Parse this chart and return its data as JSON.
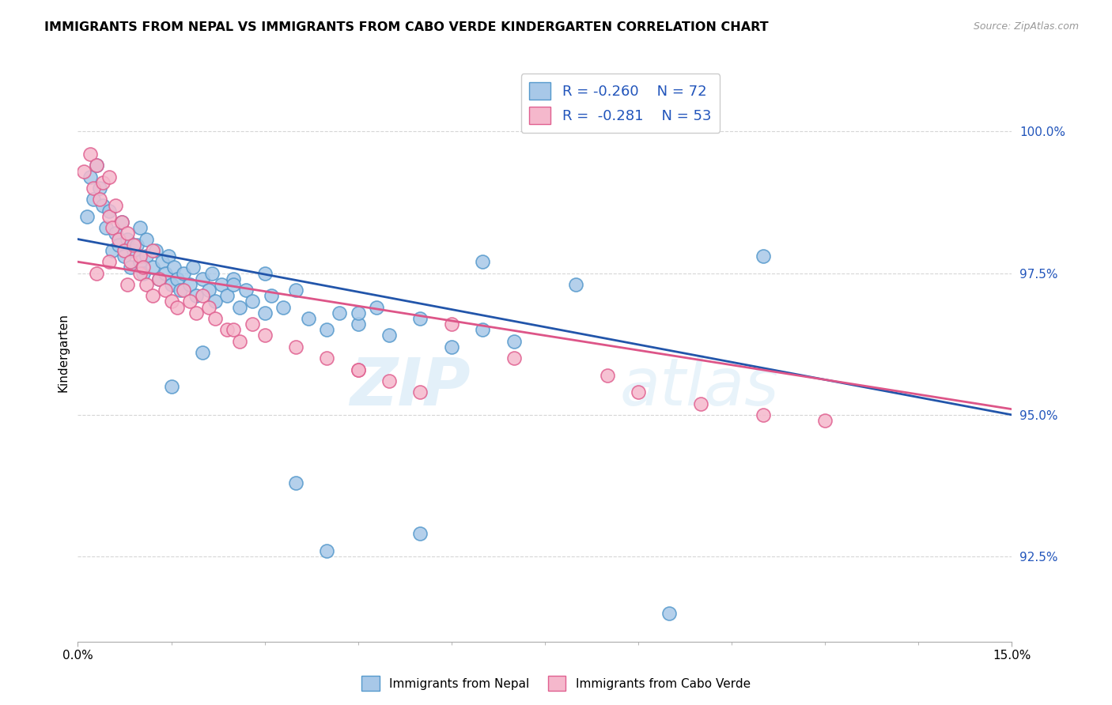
{
  "title": "IMMIGRANTS FROM NEPAL VS IMMIGRANTS FROM CABO VERDE KINDERGARTEN CORRELATION CHART",
  "source": "Source: ZipAtlas.com",
  "ylabel": "Kindergarten",
  "ytick_values": [
    92.5,
    95.0,
    97.5,
    100.0
  ],
  "xmin": 0.0,
  "xmax": 15.0,
  "ymin": 91.0,
  "ymax": 101.2,
  "nepal_color": "#a8c8e8",
  "nepal_edge": "#5599cc",
  "caboverde_color": "#f5b8cc",
  "caboverde_edge": "#e06090",
  "nepal_line_color": "#2255aa",
  "caboverde_line_color": "#dd5588",
  "nepal_R": -0.26,
  "nepal_N": 72,
  "caboverde_R": -0.281,
  "caboverde_N": 53,
  "legend_label_nepal": "Immigrants from Nepal",
  "legend_label_caboverde": "Immigrants from Cabo Verde",
  "watermark_zip": "ZIP",
  "watermark_atlas": "atlas",
  "nepal_line_x0": 0.0,
  "nepal_line_y0": 98.1,
  "nepal_line_x1": 15.0,
  "nepal_line_y1": 95.0,
  "caboverde_line_x0": 0.0,
  "caboverde_line_y0": 97.7,
  "caboverde_line_x1": 15.0,
  "caboverde_line_y1": 95.1,
  "nepal_scatter_x": [
    0.15,
    0.2,
    0.25,
    0.3,
    0.35,
    0.4,
    0.45,
    0.5,
    0.55,
    0.6,
    0.65,
    0.7,
    0.75,
    0.8,
    0.85,
    0.9,
    0.95,
    1.0,
    1.0,
    1.05,
    1.1,
    1.1,
    1.2,
    1.25,
    1.3,
    1.35,
    1.4,
    1.45,
    1.5,
    1.55,
    1.6,
    1.65,
    1.7,
    1.8,
    1.85,
    1.9,
    2.0,
    2.1,
    2.15,
    2.2,
    2.3,
    2.4,
    2.5,
    2.6,
    2.7,
    2.8,
    3.0,
    3.1,
    3.3,
    3.5,
    3.7,
    4.0,
    4.2,
    4.5,
    4.8,
    5.0,
    5.5,
    6.0,
    6.5,
    7.0,
    1.5,
    2.0,
    2.5,
    3.0,
    3.5,
    4.0,
    5.5,
    6.5,
    8.0,
    11.0,
    4.5,
    9.5
  ],
  "nepal_scatter_y": [
    98.5,
    99.2,
    98.8,
    99.4,
    99.0,
    98.7,
    98.3,
    98.6,
    97.9,
    98.2,
    98.0,
    98.4,
    97.8,
    98.1,
    97.6,
    97.9,
    98.0,
    97.7,
    98.3,
    97.5,
    97.8,
    98.1,
    97.6,
    97.9,
    97.4,
    97.7,
    97.5,
    97.8,
    97.3,
    97.6,
    97.4,
    97.2,
    97.5,
    97.3,
    97.6,
    97.1,
    97.4,
    97.2,
    97.5,
    97.0,
    97.3,
    97.1,
    97.4,
    96.9,
    97.2,
    97.0,
    96.8,
    97.1,
    96.9,
    97.2,
    96.7,
    96.5,
    96.8,
    96.6,
    96.9,
    96.4,
    96.7,
    96.2,
    96.5,
    96.3,
    95.5,
    96.1,
    97.3,
    97.5,
    93.8,
    92.6,
    92.9,
    97.7,
    97.3,
    97.8,
    96.8,
    91.5
  ],
  "caboverde_scatter_x": [
    0.1,
    0.2,
    0.25,
    0.3,
    0.35,
    0.4,
    0.5,
    0.5,
    0.55,
    0.6,
    0.65,
    0.7,
    0.75,
    0.8,
    0.85,
    0.9,
    1.0,
    1.0,
    1.05,
    1.1,
    1.2,
    1.3,
    1.4,
    1.5,
    1.6,
    1.7,
    1.8,
    1.9,
    2.0,
    2.1,
    2.2,
    2.4,
    2.6,
    2.8,
    3.0,
    3.5,
    4.0,
    4.5,
    5.0,
    5.5,
    6.0,
    7.0,
    8.5,
    9.0,
    10.0,
    11.0,
    12.0,
    0.3,
    0.5,
    0.8,
    1.2,
    2.5,
    4.5
  ],
  "caboverde_scatter_y": [
    99.3,
    99.6,
    99.0,
    99.4,
    98.8,
    99.1,
    98.5,
    99.2,
    98.3,
    98.7,
    98.1,
    98.4,
    97.9,
    98.2,
    97.7,
    98.0,
    97.8,
    97.5,
    97.6,
    97.3,
    97.1,
    97.4,
    97.2,
    97.0,
    96.9,
    97.2,
    97.0,
    96.8,
    97.1,
    96.9,
    96.7,
    96.5,
    96.3,
    96.6,
    96.4,
    96.2,
    96.0,
    95.8,
    95.6,
    95.4,
    96.6,
    96.0,
    95.7,
    95.4,
    95.2,
    95.0,
    94.9,
    97.5,
    97.7,
    97.3,
    97.9,
    96.5,
    95.8
  ]
}
